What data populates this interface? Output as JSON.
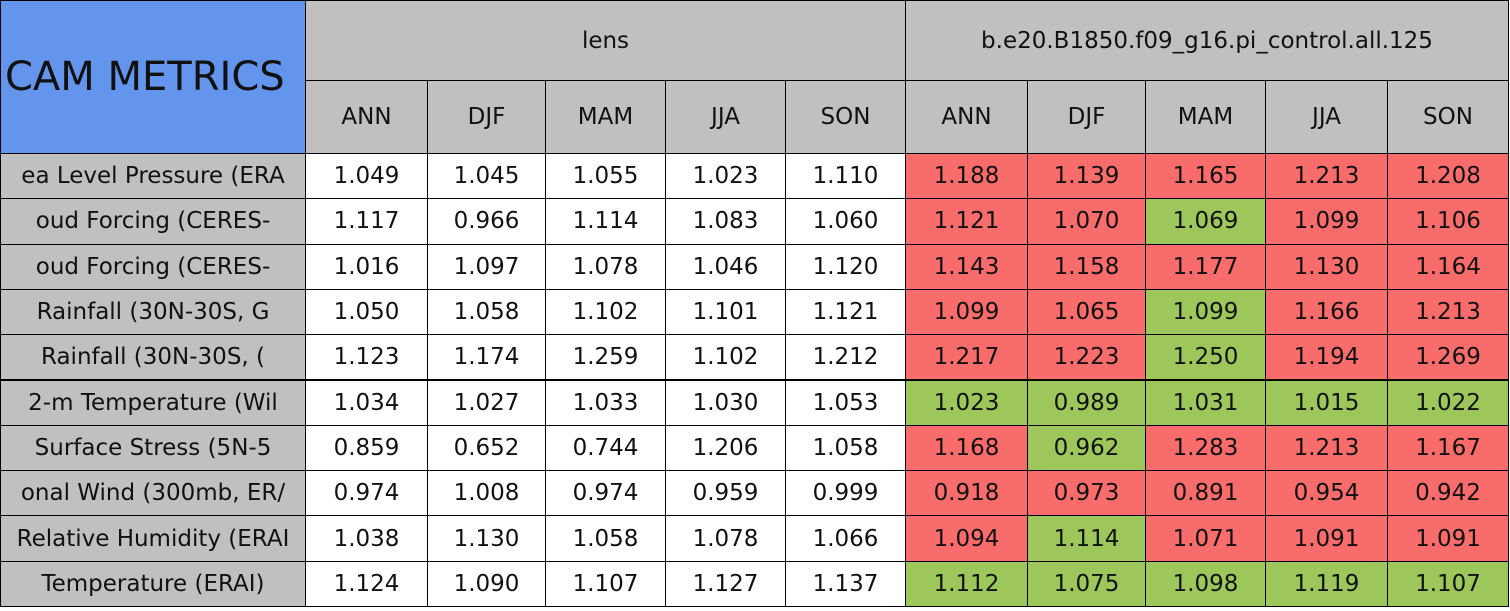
{
  "header": {
    "title": "CAM METRICS",
    "groups": [
      "lens",
      "b.e20.B1850.f09_g16.pi_control.all.125"
    ],
    "seasons": [
      "ANN",
      "DJF",
      "MAM",
      "JJA",
      "SON",
      "ANN",
      "DJF",
      "MAM",
      "JJA",
      "SON"
    ]
  },
  "table": {
    "rows": [
      {
        "label": "ea Level Pressure (ERA",
        "values": [
          "1.049",
          "1.045",
          "1.055",
          "1.023",
          "1.110",
          "1.188",
          "1.139",
          "1.165",
          "1.213",
          "1.208"
        ],
        "colors": [
          "#ffffff",
          "#ffffff",
          "#ffffff",
          "#ffffff",
          "#ffffff",
          "#f86c6b",
          "#f86c6b",
          "#f86c6b",
          "#f86c6b",
          "#f86c6b"
        ]
      },
      {
        "label": "oud Forcing (CERES-",
        "values": [
          "1.117",
          "0.966",
          "1.114",
          "1.083",
          "1.060",
          "1.121",
          "1.070",
          "1.069",
          "1.099",
          "1.106"
        ],
        "colors": [
          "#ffffff",
          "#ffffff",
          "#ffffff",
          "#ffffff",
          "#ffffff",
          "#f86c6b",
          "#f86c6b",
          "#9dc75a",
          "#f86c6b",
          "#f86c6b"
        ]
      },
      {
        "label": "oud Forcing (CERES-",
        "values": [
          "1.016",
          "1.097",
          "1.078",
          "1.046",
          "1.120",
          "1.143",
          "1.158",
          "1.177",
          "1.130",
          "1.164"
        ],
        "colors": [
          "#ffffff",
          "#ffffff",
          "#ffffff",
          "#ffffff",
          "#ffffff",
          "#f86c6b",
          "#f86c6b",
          "#f86c6b",
          "#f86c6b",
          "#f86c6b"
        ]
      },
      {
        "label": "Rainfall (30N-30S, G",
        "values": [
          "1.050",
          "1.058",
          "1.102",
          "1.101",
          "1.121",
          "1.099",
          "1.065",
          "1.099",
          "1.166",
          "1.213"
        ],
        "colors": [
          "#ffffff",
          "#ffffff",
          "#ffffff",
          "#ffffff",
          "#ffffff",
          "#f86c6b",
          "#f86c6b",
          "#9dc75a",
          "#f86c6b",
          "#f86c6b"
        ]
      },
      {
        "label": "Rainfall (30N-30S, (",
        "values": [
          "1.123",
          "1.174",
          "1.259",
          "1.102",
          "1.212",
          "1.217",
          "1.223",
          "1.250",
          "1.194",
          "1.269"
        ],
        "colors": [
          "#ffffff",
          "#ffffff",
          "#ffffff",
          "#ffffff",
          "#ffffff",
          "#f86c6b",
          "#f86c6b",
          "#9dc75a",
          "#f86c6b",
          "#f86c6b"
        ]
      },
      {
        "label": "2-m Temperature (Wil",
        "values": [
          "1.034",
          "1.027",
          "1.033",
          "1.030",
          "1.053",
          "1.023",
          "0.989",
          "1.031",
          "1.015",
          "1.022"
        ],
        "colors": [
          "#ffffff",
          "#ffffff",
          "#ffffff",
          "#ffffff",
          "#ffffff",
          "#9dc75a",
          "#9dc75a",
          "#9dc75a",
          "#9dc75a",
          "#9dc75a"
        ]
      },
      {
        "label": "Surface Stress (5N-5",
        "values": [
          "0.859",
          "0.652",
          "0.744",
          "1.206",
          "1.058",
          "1.168",
          "0.962",
          "1.283",
          "1.213",
          "1.167"
        ],
        "colors": [
          "#ffffff",
          "#ffffff",
          "#ffffff",
          "#ffffff",
          "#ffffff",
          "#f86c6b",
          "#9dc75a",
          "#f86c6b",
          "#f86c6b",
          "#f86c6b"
        ]
      },
      {
        "label": "onal Wind (300mb, ER/",
        "values": [
          "0.974",
          "1.008",
          "0.974",
          "0.959",
          "0.999",
          "0.918",
          "0.973",
          "0.891",
          "0.954",
          "0.942"
        ],
        "colors": [
          "#ffffff",
          "#ffffff",
          "#ffffff",
          "#ffffff",
          "#ffffff",
          "#f86c6b",
          "#f86c6b",
          "#f86c6b",
          "#f86c6b",
          "#f86c6b"
        ]
      },
      {
        "label": "Relative Humidity (ERAI",
        "values": [
          "1.038",
          "1.130",
          "1.058",
          "1.078",
          "1.066",
          "1.094",
          "1.114",
          "1.071",
          "1.091",
          "1.091"
        ],
        "colors": [
          "#ffffff",
          "#ffffff",
          "#ffffff",
          "#ffffff",
          "#ffffff",
          "#f86c6b",
          "#9dc75a",
          "#f86c6b",
          "#f86c6b",
          "#f86c6b"
        ]
      },
      {
        "label": "Temperature (ERAI)",
        "values": [
          "1.124",
          "1.090",
          "1.107",
          "1.127",
          "1.137",
          "1.112",
          "1.075",
          "1.098",
          "1.119",
          "1.107"
        ],
        "colors": [
          "#ffffff",
          "#ffffff",
          "#ffffff",
          "#ffffff",
          "#ffffff",
          "#9dc75a",
          "#9dc75a",
          "#9dc75a",
          "#9dc75a",
          "#9dc75a"
        ]
      }
    ]
  }
}
